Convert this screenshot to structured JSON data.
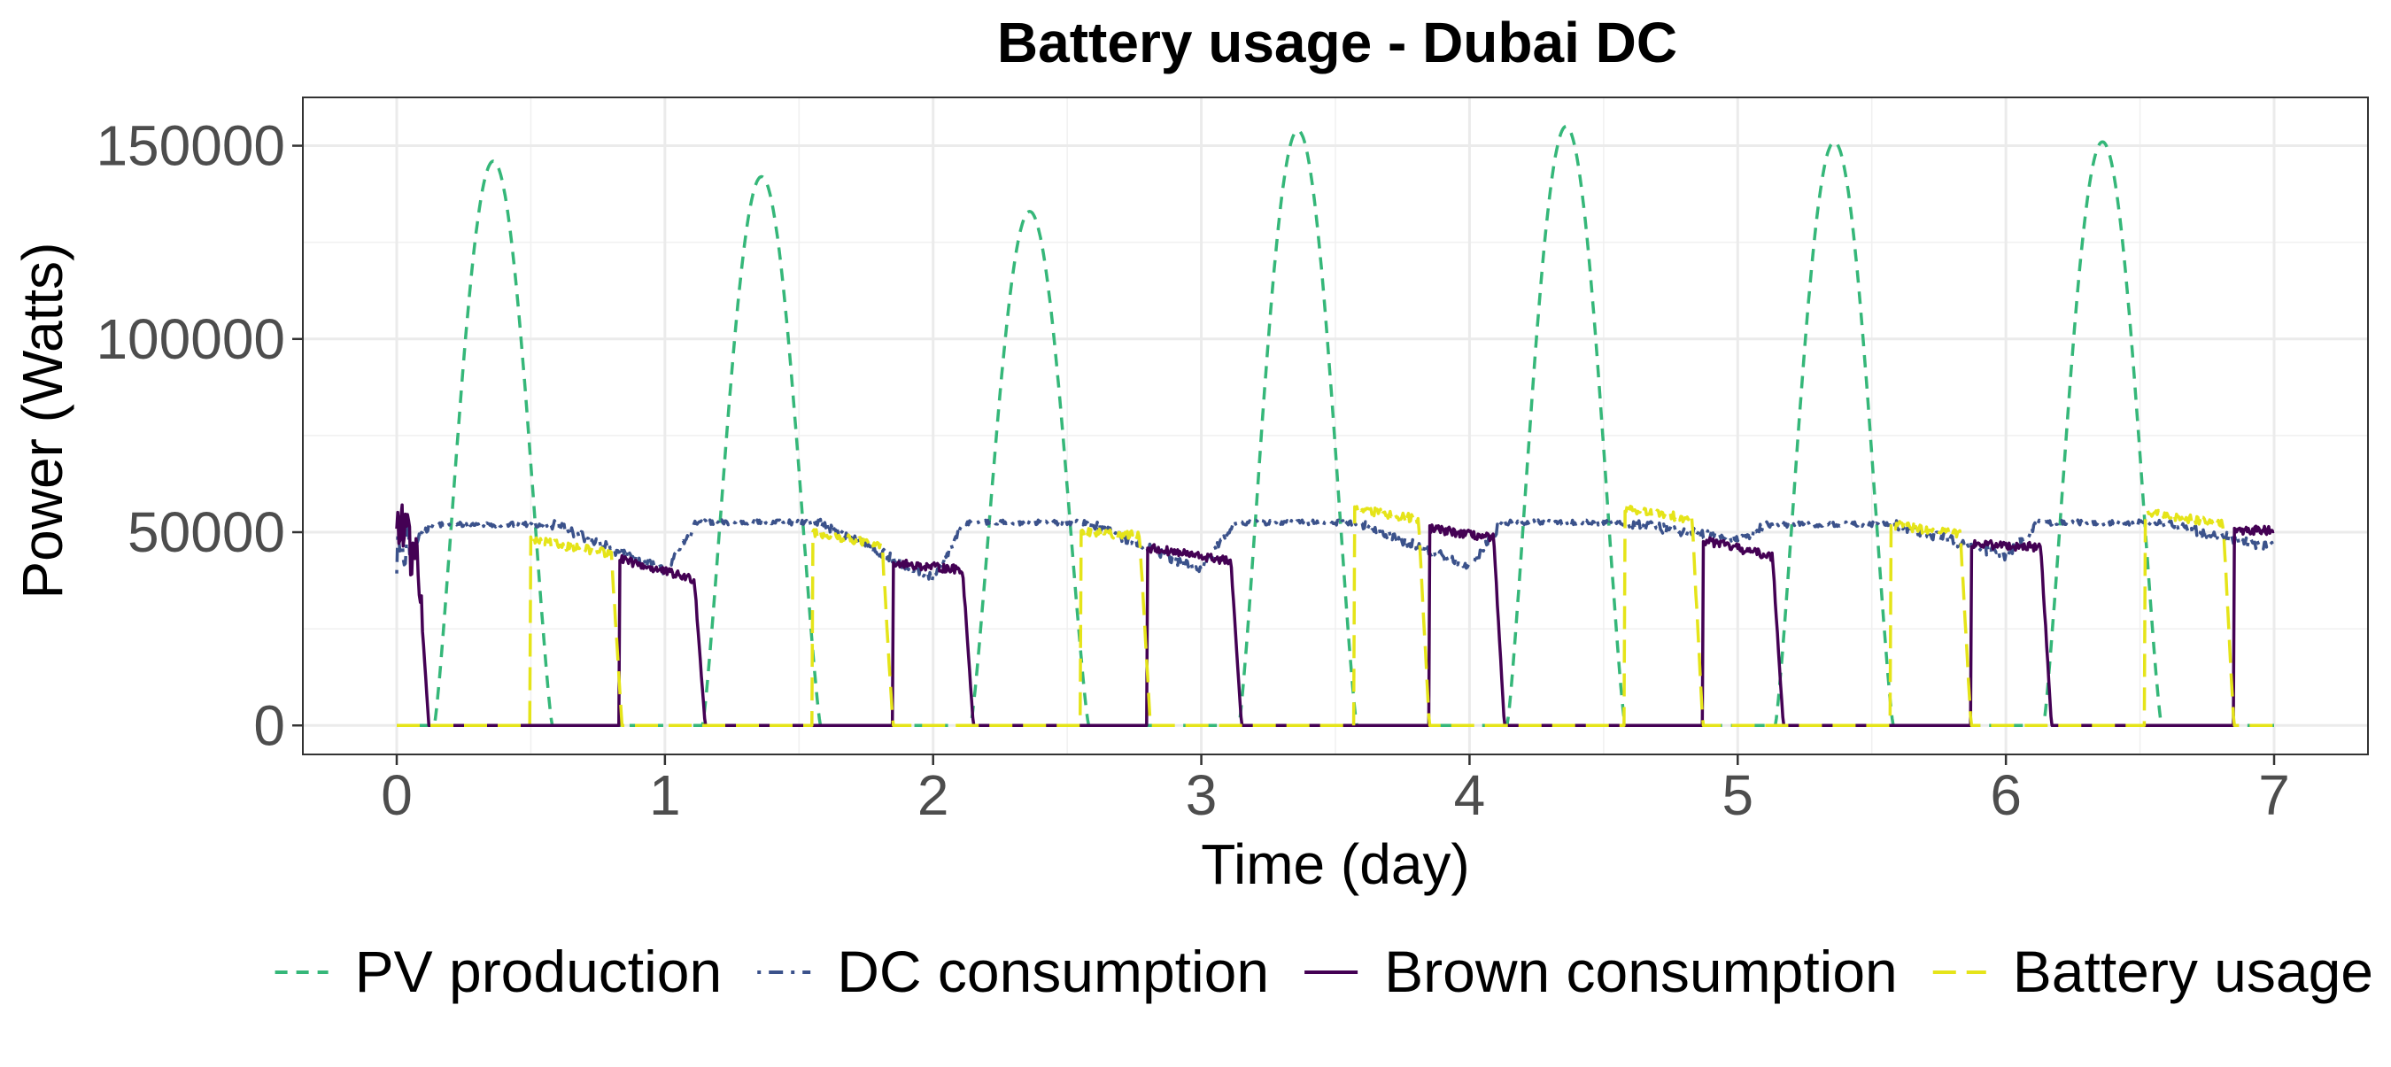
{
  "chart_data": {
    "type": "line",
    "title": "Battery usage - Dubai DC",
    "xlabel": "Time (day)",
    "ylabel": "Power (Watts)",
    "xlim": [
      -0.35,
      7.35
    ],
    "ylim": [
      -7500,
      162500
    ],
    "x_ticks": [
      0,
      1,
      2,
      3,
      4,
      5,
      6,
      7
    ],
    "x_tick_labels": [
      "0",
      "1",
      "2",
      "3",
      "4",
      "5",
      "6",
      "7"
    ],
    "y_ticks": [
      0,
      50000,
      100000,
      150000
    ],
    "y_tick_labels": [
      "0",
      "50000",
      "100000",
      "150000"
    ],
    "grid": true,
    "legend_position": "bottom",
    "series": [
      {
        "name": "PV production",
        "color": "#35b779",
        "dash": "dashed",
        "model": "pv",
        "peaks": [
          146000,
          142000,
          133000,
          154000,
          155000,
          151000,
          151000
        ]
      },
      {
        "name": "DC consumption",
        "color": "#3b528b",
        "dash": "dotdash",
        "model": "dc",
        "plateau": [
          52000,
          52500,
          52500,
          52500,
          52500,
          52000,
          52500
        ],
        "night": [
          40000,
          38000,
          40000,
          41000,
          48000,
          44000,
          46000
        ]
      },
      {
        "name": "Brown consumption",
        "color": "#440154",
        "dash": "solid",
        "model": "brown",
        "active": [
          [
            0.0,
            0.12,
            52000,
            40000
          ],
          [
            0.83,
            1.15,
            43000,
            37000
          ],
          [
            1.85,
            2.15,
            42000,
            40000
          ],
          [
            2.8,
            3.15,
            46000,
            42000
          ],
          [
            3.85,
            4.13,
            51000,
            48000
          ],
          [
            4.87,
            5.17,
            48000,
            43000
          ],
          [
            5.87,
            6.17,
            47000,
            46000
          ],
          [
            6.85,
            7.0,
            50500,
            50500
          ]
        ]
      },
      {
        "name": "Battery usage",
        "color": "#e5e419",
        "dash": "longdash",
        "model": "battery",
        "active": [
          [
            0.5,
            0.84,
            48000,
            44000
          ],
          [
            1.55,
            1.85,
            50000,
            46000
          ],
          [
            2.55,
            2.81,
            50000,
            49000
          ],
          [
            3.57,
            3.85,
            56000,
            53000
          ],
          [
            4.58,
            4.87,
            56000,
            53000
          ],
          [
            5.57,
            5.87,
            52000,
            49000
          ],
          [
            6.52,
            6.85,
            55000,
            52000
          ]
        ]
      }
    ]
  }
}
